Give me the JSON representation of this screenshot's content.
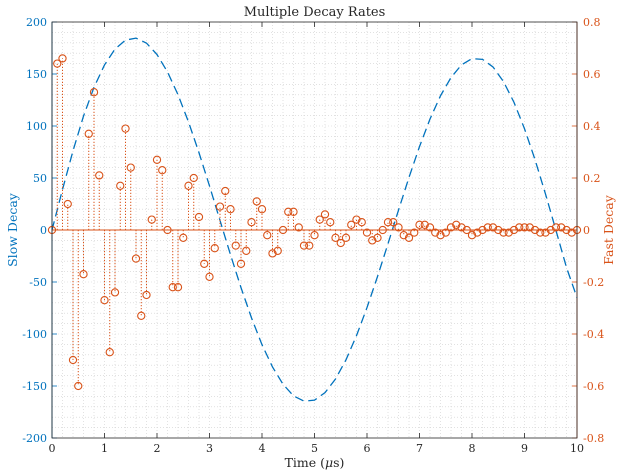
{
  "chart_data": {
    "type": "line",
    "title": "Multiple Decay Rates",
    "xlabel": "Time (μs)",
    "xlabel_parts": {
      "pre": "Time (",
      "mu": "μ",
      "post": "s)"
    },
    "xlim": [
      0,
      10
    ],
    "x_ticks": [
      0,
      1,
      2,
      3,
      4,
      5,
      6,
      7,
      8,
      9,
      10
    ],
    "grid": "minor-dotted",
    "colors": {
      "slow": "#0072BD",
      "fast": "#D95319"
    },
    "left_axis": {
      "label": "Slow Decay",
      "ylim": [
        -200,
        200
      ],
      "ticks": [
        -200,
        -150,
        -100,
        -50,
        0,
        50,
        100,
        150,
        200
      ]
    },
    "right_axis": {
      "label": "Fast Decay",
      "ylim": [
        -0.8,
        0.8
      ],
      "ticks": [
        "-0.8",
        "-0.6",
        "-0.4",
        "-0.2",
        "0",
        "0.2",
        "0.4",
        "0.6",
        "0.8"
      ]
    },
    "series": [
      {
        "axis": "left",
        "style": "dashed-line",
        "x": [
          0.0,
          0.2,
          0.4,
          0.6,
          0.8,
          1.0,
          1.2,
          1.4,
          1.6,
          1.8,
          2.0,
          2.2,
          2.4,
          2.6,
          2.8,
          3.0,
          3.2,
          3.4,
          3.6,
          3.8,
          4.0,
          4.2,
          4.4,
          4.6,
          4.8,
          5.0,
          5.2,
          5.4,
          5.6,
          5.8,
          6.0,
          6.2,
          6.4,
          6.6,
          6.8,
          7.0,
          7.2,
          7.4,
          7.6,
          7.8,
          8.0,
          8.2,
          8.4,
          8.6,
          8.8,
          9.0,
          9.2,
          9.4,
          9.6,
          9.8,
          10.0
        ],
        "y": [
          0,
          38.9,
          76.1,
          109.5,
          137.2,
          158.7,
          174.0,
          182.6,
          184.5,
          179.7,
          168.7,
          152.0,
          130.1,
          103.9,
          74.3,
          42.4,
          9.2,
          -23.8,
          -55.4,
          -84.5,
          -110.3,
          -131.7,
          -148.3,
          -159.5,
          -164.6,
          -163.6,
          -156.4,
          -143.3,
          -124.8,
          -101.6,
          -74.6,
          -44.8,
          -13.2,
          19.1,
          50.6,
          80.2,
          106.7,
          129.1,
          146.6,
          158.8,
          164.8,
          164.1,
          156.8,
          142.7,
          122.7,
          97.4,
          67.7,
          34.6,
          -0.5,
          -36.1,
          -65.0
        ]
      },
      {
        "axis": "right",
        "style": "stem",
        "x": [
          0.0,
          0.1,
          0.2,
          0.3,
          0.4,
          0.5,
          0.6,
          0.7,
          0.8,
          0.9,
          1.0,
          1.1,
          1.2,
          1.3,
          1.4,
          1.5,
          1.6,
          1.7,
          1.8,
          1.9,
          2.0,
          2.1,
          2.2,
          2.3,
          2.4,
          2.5,
          2.6,
          2.7,
          2.8,
          2.9,
          3.0,
          3.1,
          3.2,
          3.3,
          3.4,
          3.5,
          3.6,
          3.7,
          3.8,
          3.9,
          4.0,
          4.1,
          4.2,
          4.3,
          4.4,
          4.5,
          4.6,
          4.7,
          4.8,
          4.9,
          5.0,
          5.1,
          5.2,
          5.3,
          5.4,
          5.5,
          5.6,
          5.7,
          5.8,
          5.9,
          6.0,
          6.1,
          6.2,
          6.3,
          6.4,
          6.5,
          6.6,
          6.7,
          6.8,
          6.9,
          7.0,
          7.1,
          7.2,
          7.3,
          7.4,
          7.5,
          7.6,
          7.7,
          7.8,
          7.9,
          8.0,
          8.1,
          8.2,
          8.3,
          8.4,
          8.5,
          8.6,
          8.7,
          8.8,
          8.9,
          9.0,
          9.1,
          9.2,
          9.3,
          9.4,
          9.5,
          9.6,
          9.7,
          9.8,
          9.9,
          10.0
        ],
        "y": [
          0,
          0.64,
          0.66,
          0.1,
          -0.5,
          -0.6,
          -0.17,
          0.37,
          0.53,
          0.21,
          -0.27,
          -0.47,
          -0.24,
          0.17,
          0.39,
          0.24,
          -0.11,
          -0.33,
          -0.25,
          0.04,
          0.27,
          0.23,
          0.0,
          -0.22,
          -0.22,
          -0.03,
          0.17,
          0.2,
          0.05,
          -0.13,
          -0.18,
          -0.07,
          0.09,
          0.15,
          0.08,
          -0.06,
          -0.13,
          -0.08,
          0.03,
          0.11,
          0.08,
          -0.02,
          -0.09,
          -0.08,
          0.0,
          0.07,
          0.07,
          0.01,
          -0.06,
          -0.06,
          -0.02,
          0.04,
          0.06,
          0.03,
          -0.03,
          -0.05,
          -0.03,
          0.02,
          0.04,
          0.03,
          -0.01,
          -0.04,
          -0.03,
          0.0,
          0.03,
          0.03,
          0.01,
          -0.02,
          -0.03,
          -0.01,
          0.02,
          0.02,
          0.01,
          -0.01,
          -0.02,
          -0.01,
          0.01,
          0.02,
          0.01,
          0.0,
          -0.02,
          -0.01,
          0.0,
          0.01,
          0.01,
          0.0,
          -0.01,
          -0.01,
          0.0,
          0.01,
          0.01,
          0.01,
          0.0,
          -0.01,
          -0.01,
          0.0,
          0.01,
          0.01,
          0.0,
          -0.01,
          0.0
        ]
      }
    ]
  }
}
